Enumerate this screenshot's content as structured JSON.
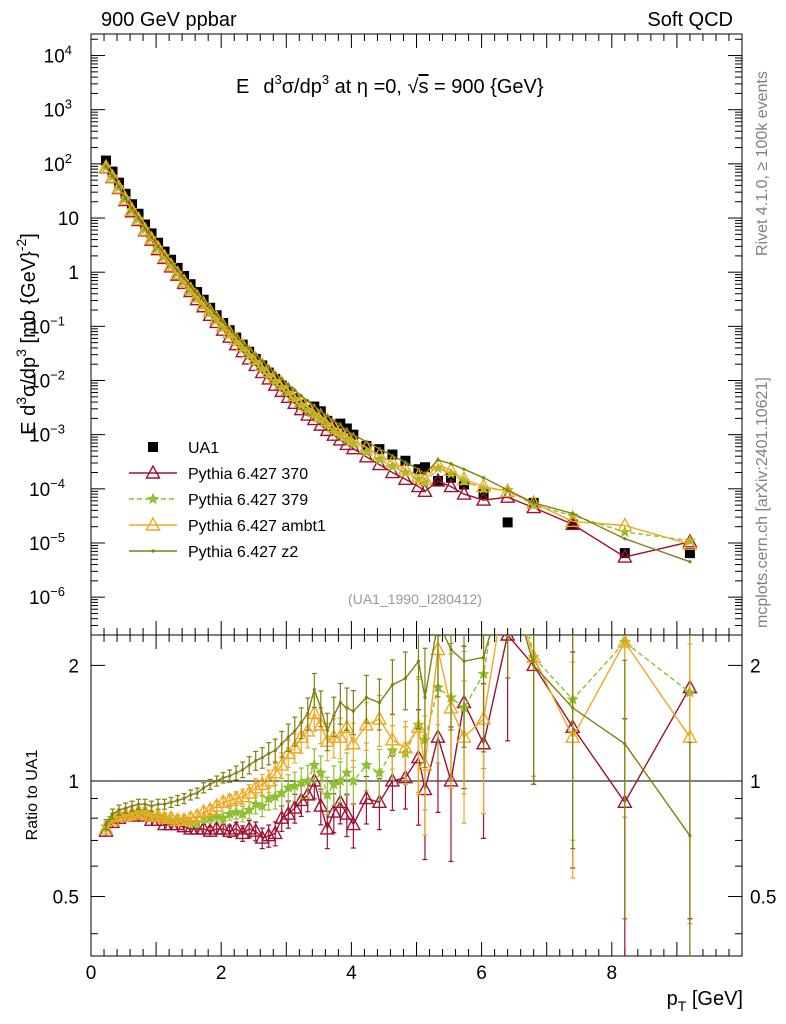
{
  "header": {
    "left": "900 GeV ppbar",
    "right": "Soft QCD",
    "side_top": "Rivet 4.1.0, ≥ 100k events",
    "side_bottom": "mcplots.cern.ch [arXiv:2401.10621]"
  },
  "chart_data": [
    {
      "type": "scatter",
      "panel": "main",
      "title": "E  d³σ/dp³ at η =0, √s = 900 {GeV}",
      "title_parts": {
        "E": "E",
        "d": "d",
        "sup3": "3",
        "sigma_dp": "σ/dp",
        "at_eta": " at η =0, ",
        "sqrt": "√",
        "s": "s",
        "rest": " = 900 {GeV}"
      },
      "ylabel": "E d³σ/dp³ [mb {GeV}⁻²]",
      "ylabel_parts": {
        "a": "E d",
        "sup3": "3",
        "b": "σ/dp",
        "c": " [mb {GeV}",
        "sup": "-2",
        "d": "]"
      },
      "yscale": "log",
      "ylim": [
        2e-07,
        25000
      ],
      "xlim": [
        0,
        10
      ],
      "y_ticks": [
        {
          "v": 1e-06,
          "b": "10",
          "e": "−6"
        },
        {
          "v": 1e-05,
          "b": "10",
          "e": "−5"
        },
        {
          "v": 0.0001,
          "b": "10",
          "e": "−4"
        },
        {
          "v": 0.001,
          "b": "10",
          "e": "−3"
        },
        {
          "v": 0.01,
          "b": "10",
          "e": "−2"
        },
        {
          "v": 0.1,
          "b": "10",
          "e": "−1"
        },
        {
          "v": 1,
          "b": "1",
          "e": ""
        },
        {
          "v": 10,
          "b": "10",
          "e": ""
        },
        {
          "v": 100,
          "b": "10",
          "e": "2"
        },
        {
          "v": 1000,
          "b": "10",
          "e": "3"
        },
        {
          "v": 10000,
          "b": "10",
          "e": "4"
        }
      ],
      "plot_id": "(UA1_1990_I280412)",
      "legend_position": "bottom-left",
      "series": [
        {
          "name": "UA1",
          "style": "data",
          "color": "#000000",
          "x": [
            0.23,
            0.33,
            0.43,
            0.53,
            0.63,
            0.73,
            0.83,
            0.93,
            1.03,
            1.13,
            1.23,
            1.33,
            1.43,
            1.53,
            1.63,
            1.73,
            1.83,
            1.93,
            2.03,
            2.13,
            2.23,
            2.33,
            2.43,
            2.53,
            2.63,
            2.73,
            2.83,
            2.93,
            3.03,
            3.13,
            3.23,
            3.33,
            3.43,
            3.53,
            3.63,
            3.73,
            3.83,
            3.93,
            4.03,
            4.23,
            4.43,
            4.63,
            4.83,
            5.03,
            5.13,
            5.33,
            5.53,
            5.73,
            6.03,
            6.4,
            6.8,
            7.4,
            8.2,
            9.2
          ],
          "y": [
            115,
            72,
            45,
            28,
            18,
            12,
            7.6,
            5.2,
            3.5,
            2.4,
            1.7,
            1.2,
            0.85,
            0.6,
            0.43,
            0.31,
            0.22,
            0.16,
            0.115,
            0.085,
            0.062,
            0.046,
            0.034,
            0.025,
            0.019,
            0.014,
            0.0107,
            0.0081,
            0.0062,
            0.0047,
            0.0036,
            0.0028,
            0.0033,
            0.0027,
            0.0018,
            0.0014,
            0.0016,
            0.0013,
            0.001,
            0.00062,
            0.00054,
            0.00043,
            0.00033,
            0.00023,
            0.00025,
            0.00014,
            0.00016,
            0.00012,
            8e-05,
            2.4e-05,
            5.5e-05,
            2.2e-05,
            6.5e-06,
            6.5e-06
          ]
        },
        {
          "name": "Pythia 6.427 370",
          "style": "triangle",
          "color": "#a01030",
          "x": [
            0.23,
            0.33,
            0.43,
            0.53,
            0.63,
            0.73,
            0.83,
            0.93,
            1.03,
            1.13,
            1.23,
            1.33,
            1.43,
            1.53,
            1.63,
            1.73,
            1.83,
            1.93,
            2.03,
            2.13,
            2.23,
            2.33,
            2.43,
            2.53,
            2.63,
            2.73,
            2.83,
            2.93,
            3.03,
            3.13,
            3.23,
            3.33,
            3.43,
            3.53,
            3.63,
            3.73,
            3.83,
            3.93,
            4.03,
            4.23,
            4.43,
            4.63,
            4.83,
            5.03,
            5.13,
            5.33,
            5.53,
            5.73,
            6.03,
            6.4,
            6.8,
            7.4,
            8.2,
            9.2
          ],
          "y": [
            85,
            56,
            35,
            21,
            13,
            9,
            5.8,
            3.9,
            2.6,
            1.8,
            1.25,
            0.88,
            0.62,
            0.44,
            0.31,
            0.23,
            0.16,
            0.118,
            0.085,
            0.063,
            0.046,
            0.034,
            0.025,
            0.019,
            0.014,
            0.0107,
            0.0082,
            0.0063,
            0.0049,
            0.0038,
            0.0029,
            0.0023,
            0.0019,
            0.0015,
            0.0012,
            0.00098,
            0.0008,
            0.00066,
            0.00055,
            0.00039,
            0.00028,
            0.0002,
            0.00015,
            0.00011,
            9e-05,
            0.00014,
            0.00011,
            8e-05,
            6.2e-05,
            7e-05,
            4.5e-05,
            2.2e-05,
            5.5e-06,
            1.05e-05
          ],
          "ratio": [
            0.74,
            0.78,
            0.8,
            0.81,
            0.81,
            0.82,
            0.81,
            0.79,
            0.79,
            0.77,
            0.77,
            0.77,
            0.76,
            0.75,
            0.75,
            0.75,
            0.74,
            0.75,
            0.75,
            0.74,
            0.75,
            0.73,
            0.75,
            0.74,
            0.71,
            0.72,
            0.73,
            0.8,
            0.82,
            0.85,
            0.89,
            0.92,
            1.0,
            0.86,
            0.75,
            0.83,
            0.88,
            0.82,
            0.77,
            0.9,
            0.88,
            1.0,
            1.02,
            1.15,
            0.95,
            1.3,
            1.0,
            1.6,
            1.25,
            2.4,
            2.0,
            1.38,
            0.88,
            1.75
          ]
        },
        {
          "name": "Pythia 6.427 379",
          "style": "star",
          "color": "#8fc030",
          "x": [
            0.23,
            0.33,
            0.43,
            0.53,
            0.63,
            0.73,
            0.83,
            0.93,
            1.03,
            1.13,
            1.23,
            1.33,
            1.43,
            1.53,
            1.63,
            1.73,
            1.83,
            1.93,
            2.03,
            2.13,
            2.23,
            2.33,
            2.43,
            2.53,
            2.63,
            2.73,
            2.83,
            2.93,
            3.03,
            3.13,
            3.23,
            3.33,
            3.43,
            3.53,
            3.63,
            3.73,
            3.83,
            3.93,
            4.03,
            4.23,
            4.43,
            4.63,
            4.83,
            5.03,
            5.13,
            5.33,
            5.53,
            5.73,
            6.03,
            6.4,
            6.8,
            7.4,
            8.2,
            9.2
          ],
          "y": [
            88,
            58,
            37,
            23,
            14,
            9.6,
            6.2,
            4.2,
            2.8,
            1.95,
            1.35,
            0.95,
            0.67,
            0.47,
            0.34,
            0.25,
            0.18,
            0.13,
            0.095,
            0.07,
            0.052,
            0.039,
            0.029,
            0.022,
            0.0165,
            0.0126,
            0.0097,
            0.0075,
            0.0059,
            0.0045,
            0.0035,
            0.0028,
            0.0023,
            0.0019,
            0.0015,
            0.0012,
            0.00099,
            0.00082,
            0.00068,
            0.00048,
            0.00035,
            0.00026,
            0.0002,
            0.00015,
            0.00013,
            0.00024,
            0.00019,
            0.00014,
            0.0001,
            9.5e-05,
            5e-05,
            3.2e-05,
            1.6e-05,
            1.1e-05
          ],
          "ratio": [
            0.76,
            0.8,
            0.82,
            0.82,
            0.82,
            0.83,
            0.83,
            0.81,
            0.81,
            0.8,
            0.79,
            0.79,
            0.79,
            0.78,
            0.78,
            0.8,
            0.8,
            0.81,
            0.8,
            0.82,
            0.83,
            0.82,
            0.84,
            0.87,
            0.86,
            0.9,
            0.91,
            0.93,
            0.96,
            0.97,
            0.99,
            1.0,
            1.1,
            1.05,
            0.92,
            0.98,
            1.0,
            1.05,
            1.0,
            1.1,
            1.05,
            1.2,
            1.18,
            1.4,
            1.28,
            1.75,
            1.65,
            1.55,
            1.9,
            4.5,
            2.1,
            1.63,
            2.3,
            1.7
          ]
        },
        {
          "name": "Pythia 6.427 ambt1",
          "style": "triangle",
          "color": "#f0a820",
          "x": [
            0.23,
            0.33,
            0.43,
            0.53,
            0.63,
            0.73,
            0.83,
            0.93,
            1.03,
            1.13,
            1.23,
            1.33,
            1.43,
            1.53,
            1.63,
            1.73,
            1.83,
            1.93,
            2.03,
            2.13,
            2.23,
            2.33,
            2.43,
            2.53,
            2.63,
            2.73,
            2.83,
            2.93,
            3.03,
            3.13,
            3.23,
            3.33,
            3.43,
            3.53,
            3.63,
            3.73,
            3.83,
            3.93,
            4.03,
            4.23,
            4.43,
            4.63,
            4.83,
            5.03,
            5.13,
            5.33,
            5.53,
            5.73,
            6.03,
            6.4,
            6.8,
            7.4,
            8.2,
            9.2
          ],
          "y": [
            87,
            57,
            36,
            22,
            14,
            9.4,
            6,
            4.1,
            2.8,
            1.9,
            1.33,
            0.94,
            0.67,
            0.48,
            0.35,
            0.26,
            0.19,
            0.14,
            0.102,
            0.077,
            0.058,
            0.044,
            0.033,
            0.025,
            0.019,
            0.0145,
            0.0112,
            0.0088,
            0.0068,
            0.0053,
            0.0041,
            0.0033,
            0.0027,
            0.0022,
            0.0018,
            0.0014,
            0.0012,
            0.00097,
            0.0008,
            0.00058,
            0.00042,
            0.00031,
            0.00023,
            0.00017,
            0.00015,
            0.00028,
            0.00022,
            0.00015,
            0.00011,
            9e-05,
            5.5e-05,
            2.5e-05,
            2.1e-05,
            9.5e-06
          ],
          "ratio": [
            0.75,
            0.79,
            0.81,
            0.81,
            0.82,
            0.83,
            0.82,
            0.81,
            0.81,
            0.8,
            0.8,
            0.79,
            0.79,
            0.8,
            0.81,
            0.83,
            0.84,
            0.86,
            0.88,
            0.89,
            0.9,
            0.91,
            0.93,
            0.96,
            0.98,
            1.0,
            1.05,
            1.1,
            1.18,
            1.22,
            1.3,
            1.35,
            1.5,
            1.4,
            1.27,
            1.3,
            1.3,
            1.38,
            1.25,
            1.4,
            1.45,
            1.28,
            1.22,
            1.38,
            1.1,
            2.2,
            1.55,
            1.3,
            1.45,
            3.5,
            2.1,
            1.3,
            2.3,
            1.3
          ]
        },
        {
          "name": "Pythia 6.427 z2",
          "style": "line",
          "color": "#808010",
          "x": [
            0.23,
            0.33,
            0.43,
            0.53,
            0.63,
            0.73,
            0.83,
            0.93,
            1.03,
            1.13,
            1.23,
            1.33,
            1.43,
            1.53,
            1.63,
            1.73,
            1.83,
            1.93,
            2.03,
            2.13,
            2.23,
            2.33,
            2.43,
            2.53,
            2.63,
            2.73,
            2.83,
            2.93,
            3.03,
            3.13,
            3.23,
            3.33,
            3.43,
            3.53,
            3.63,
            3.73,
            3.83,
            3.93,
            4.03,
            4.23,
            4.43,
            4.63,
            4.83,
            5.03,
            5.13,
            5.33,
            5.53,
            5.73,
            6.03,
            6.4,
            6.8,
            7.4,
            8.2,
            9.2
          ],
          "y": [
            90,
            59,
            38,
            23,
            15,
            10,
            6.4,
            4.4,
            3,
            2.1,
            1.5,
            1.07,
            0.77,
            0.55,
            0.4,
            0.3,
            0.22,
            0.163,
            0.121,
            0.09,
            0.068,
            0.051,
            0.039,
            0.03,
            0.023,
            0.0177,
            0.0137,
            0.0107,
            0.0084,
            0.0066,
            0.0052,
            0.0042,
            0.0034,
            0.0027,
            0.0022,
            0.0018,
            0.0015,
            0.0012,
            0.001,
            0.00074,
            0.00055,
            0.00041,
            0.00031,
            0.00023,
            0.00019,
            0.00034,
            0.00029,
            0.00023,
            0.00016,
            9.5e-05,
            5.5e-05,
            3.5e-05,
            1.2e-05,
            4.5e-06
          ],
          "ratio": [
            0.77,
            0.82,
            0.84,
            0.85,
            0.86,
            0.87,
            0.87,
            0.86,
            0.87,
            0.87,
            0.88,
            0.89,
            0.9,
            0.92,
            0.93,
            0.96,
            0.98,
            1.0,
            1.02,
            1.03,
            1.05,
            1.07,
            1.1,
            1.13,
            1.15,
            1.18,
            1.2,
            1.25,
            1.3,
            1.35,
            1.42,
            1.5,
            1.73,
            1.55,
            1.35,
            1.48,
            1.6,
            1.55,
            1.52,
            1.65,
            1.6,
            1.78,
            1.85,
            2.05,
            1.65,
            2.6,
            2.2,
            2.05,
            2.1,
            3.5,
            2.0,
            1.55,
            1.25,
            0.72
          ]
        }
      ]
    },
    {
      "type": "line",
      "panel": "ratio",
      "ylabel": "Ratio to UA1",
      "xlabel": "p_T [GeV]",
      "xlabel_parts": {
        "p": "p",
        "sub": "T",
        "unit": " [GeV]"
      },
      "yscale": "log",
      "ylim": [
        0.35,
        2.4
      ],
      "xlim": [
        0,
        10
      ],
      "x_ticks": [
        {
          "v": 0,
          "t": "0"
        },
        {
          "v": 2,
          "t": "2"
        },
        {
          "v": 4,
          "t": "4"
        },
        {
          "v": 6,
          "t": "6"
        },
        {
          "v": 8,
          "t": "8"
        }
      ],
      "y_ticks": [
        {
          "v": 0.5,
          "t": "0.5"
        },
        {
          "v": 1,
          "t": "1"
        },
        {
          "v": 2,
          "t": "2"
        }
      ],
      "reference_line": 1
    }
  ]
}
